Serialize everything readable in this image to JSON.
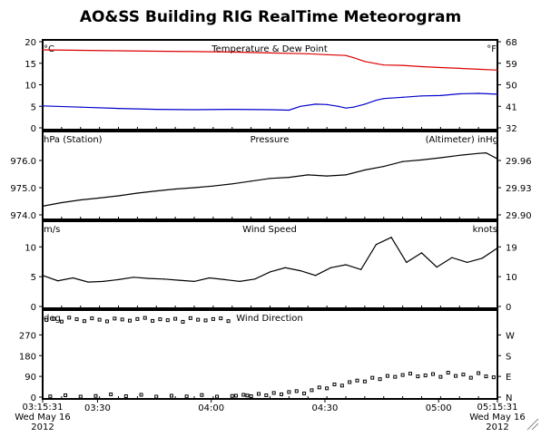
{
  "chart_data": {
    "type": "line",
    "title": "AO&SS Building RIG RealTime Meteorogram",
    "time_axis": {
      "start": "2012-05-16 03:15:31",
      "end": "2012-05-16 05:15:31",
      "ticks": [
        "03:30",
        "04:00",
        "04:30",
        "05:00"
      ],
      "start_label": [
        "03:15:31",
        "Wed May 16",
        "2012"
      ],
      "end_label": [
        "05:15:31",
        "Wed May 16",
        "2012"
      ]
    },
    "panels": [
      {
        "id": "temp",
        "title": "Temperature & Dew Point",
        "left_unit": "°C",
        "right_unit": "°F",
        "ylim": [
          0,
          20
        ],
        "left_ticks": [
          "0",
          "5",
          "10",
          "15",
          "20"
        ],
        "right_ticks": [
          "32",
          "41",
          "50",
          "59",
          "68"
        ],
        "series": [
          {
            "kind": "line",
            "color": "#dd0000",
            "minutes": [
              0,
              10,
              20,
              30,
              40,
              50,
              60,
              70,
              75,
              80,
              82,
              85,
              88,
              90,
              95,
              100,
              105,
              110,
              115,
              120
            ],
            "values": [
              18.1,
              18.0,
              17.9,
              17.8,
              17.7,
              17.6,
              17.4,
              17.2,
              17.0,
              16.8,
              16.3,
              15.4,
              14.9,
              14.6,
              14.5,
              14.2,
              14.0,
              13.8,
              13.6,
              13.4
            ]
          },
          {
            "kind": "line",
            "color": "#0000cc",
            "minutes": [
              0,
              10,
              20,
              30,
              40,
              50,
              60,
              65,
              68,
              72,
              75,
              78,
              80,
              82,
              85,
              88,
              90,
              95,
              100,
              105,
              110,
              115,
              120
            ],
            "values": [
              5.1,
              4.8,
              4.5,
              4.3,
              4.2,
              4.3,
              4.2,
              4.1,
              5.0,
              5.5,
              5.4,
              5.0,
              4.6,
              4.8,
              5.5,
              6.4,
              6.8,
              7.1,
              7.4,
              7.5,
              7.9,
              8.0,
              7.8
            ]
          }
        ]
      },
      {
        "id": "pressure",
        "title": "Pressure",
        "left_unit": "hPa (Station)",
        "right_unit": "(Altimeter) inHg",
        "ylim": [
          973.9,
          977.0
        ],
        "left_ticks": [
          "974.0",
          "975.0",
          "976.0"
        ],
        "right_ticks": [
          "29.90",
          "29.93",
          "29.96"
        ],
        "series": [
          {
            "kind": "line",
            "color": "#000000",
            "minutes": [
              0,
              5,
              10,
              15,
              20,
              25,
              30,
              35,
              40,
              45,
              50,
              55,
              60,
              65,
              70,
              75,
              80,
              85,
              90,
              95,
              100,
              105,
              110,
              115,
              117,
              120
            ],
            "values": [
              974.32,
              974.45,
              974.55,
              974.62,
              974.7,
              974.8,
              974.88,
              974.95,
              975.0,
              975.06,
              975.14,
              975.24,
              975.34,
              975.38,
              975.47,
              975.43,
              975.47,
              975.65,
              975.78,
              975.96,
              976.02,
              976.1,
              976.19,
              976.26,
              976.28,
              976.06
            ]
          }
        ]
      },
      {
        "id": "wind",
        "title": "Wind Speed",
        "left_unit": "m/s",
        "right_unit": "knots",
        "ylim": [
          0,
          14
        ],
        "left_ticks": [
          "0",
          "5",
          "10"
        ],
        "right_ticks": [
          "0",
          "10",
          "19"
        ],
        "series": [
          {
            "kind": "line",
            "color": "#000000",
            "minutes": [
              0,
              4,
              8,
              12,
              16,
              20,
              24,
              28,
              32,
              36,
              40,
              44,
              48,
              52,
              56,
              60,
              64,
              68,
              72,
              76,
              80,
              84,
              88,
              92,
              96,
              100,
              104,
              108,
              112,
              116,
              120
            ],
            "values": [
              5.2,
              4.3,
              4.8,
              4.1,
              4.2,
              4.5,
              4.9,
              4.7,
              4.6,
              4.4,
              4.2,
              4.8,
              4.5,
              4.2,
              4.6,
              5.8,
              6.5,
              6.0,
              5.2,
              6.5,
              7.0,
              6.2,
              10.4,
              11.6,
              7.4,
              9.0,
              6.6,
              8.2,
              7.4,
              8.1,
              9.8
            ]
          }
        ]
      },
      {
        "id": "winddir",
        "title": "Wind Direction",
        "left_unit": "deg",
        "right_unit": "",
        "ylim": [
          0,
          370
        ],
        "left_ticks": [
          "0",
          "90",
          "180",
          "270"
        ],
        "right_ticks": [
          "N",
          "E",
          "S",
          "W"
        ],
        "series": [
          {
            "kind": "scatter",
            "color": "#000000",
            "minutes": [
              1,
              3,
              5,
              7,
              9,
              11,
              13,
              15,
              17,
              19,
              21,
              23,
              25,
              27,
              29,
              31,
              33,
              35,
              37,
              39,
              41,
              43,
              45,
              47,
              49,
              51,
              53,
              55,
              57,
              59,
              61,
              63,
              65,
              67,
              69,
              71,
              73,
              75,
              77,
              79,
              81,
              83,
              85,
              87,
              89,
              91,
              93,
              95,
              97,
              99,
              101,
              103,
              105,
              107,
              109,
              111,
              113,
              115,
              117,
              119
            ],
            "values": [
              335,
              340,
              328,
              345,
              338,
              330,
              342,
              336,
              329,
              341,
              337,
              332,
              339,
              344,
              331,
              338,
              334,
              340,
              327,
              343,
              336,
              333,
              339,
              342,
              330,
              6,
              10,
              4,
              14,
              8,
              18,
              12,
              22,
              26,
              16,
              30,
              42,
              38,
              55,
              50,
              65,
              72,
              68,
              84,
              78,
              92,
              88,
              96,
              102,
              90,
              94,
              100,
              88,
              106,
              92,
              98,
              84,
              104,
              90,
              86
            ]
          },
          {
            "kind": "scatter",
            "color": "#000000",
            "minutes": [
              2,
              6,
              10,
              14,
              18,
              22,
              26,
              30,
              34,
              38,
              42,
              46,
              50,
              54
            ],
            "values": [
              3,
              8,
              2,
              5,
              12,
              4,
              10,
              2,
              6,
              3,
              9,
              2,
              5,
              7
            ]
          }
        ]
      }
    ]
  }
}
